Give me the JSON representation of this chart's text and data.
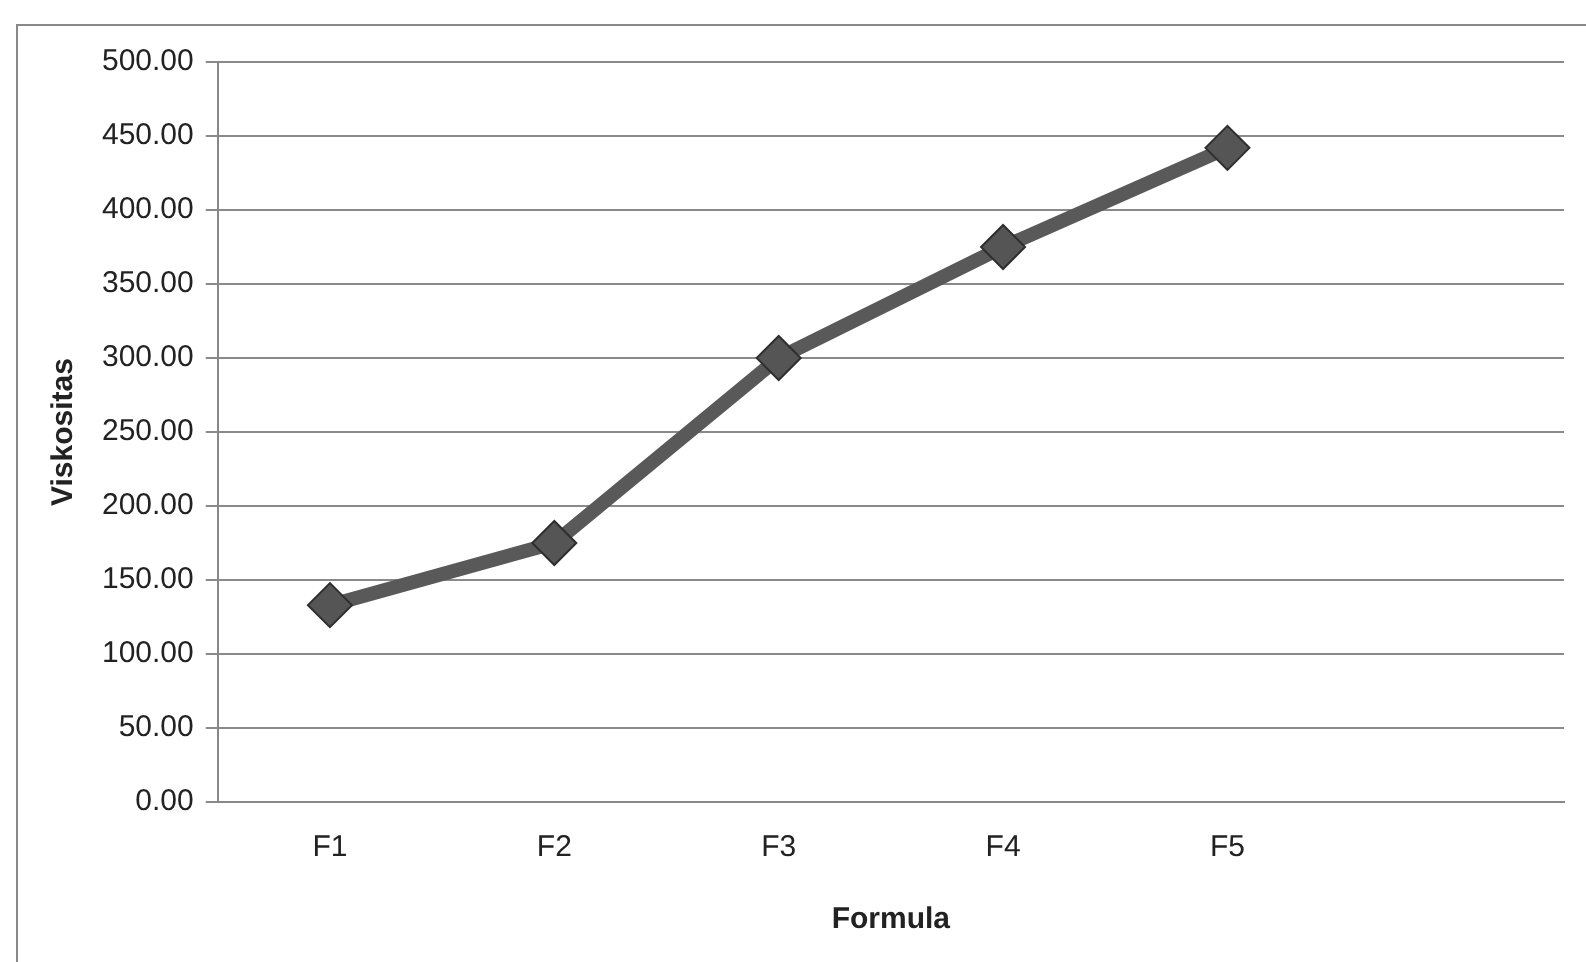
{
  "chart_data": {
    "type": "line",
    "xlabel": "Formula",
    "ylabel": "Viskositas",
    "categories": [
      "F1",
      "F2",
      "F3",
      "F4",
      "F5",
      null
    ],
    "values": [
      133,
      175,
      300,
      375,
      442,
      null
    ],
    "color": "#595959",
    "ylim": [
      0,
      500
    ],
    "yticks": [
      {
        "value": 0,
        "label": "0.00"
      },
      {
        "value": 50,
        "label": "50.00"
      },
      {
        "value": 100,
        "label": "100.00"
      },
      {
        "value": 150,
        "label": "150.00"
      },
      {
        "value": 200,
        "label": "200.00"
      },
      {
        "value": 250,
        "label": "250.00"
      },
      {
        "value": 300,
        "label": "300.00"
      },
      {
        "value": 350,
        "label": "350.00"
      },
      {
        "value": 400,
        "label": "400.00"
      },
      {
        "value": 450,
        "label": "450.00"
      },
      {
        "value": 500,
        "label": "500.00"
      }
    ],
    "grid": "y",
    "legend": false,
    "marker": "diamond",
    "line_style": "solid"
  }
}
